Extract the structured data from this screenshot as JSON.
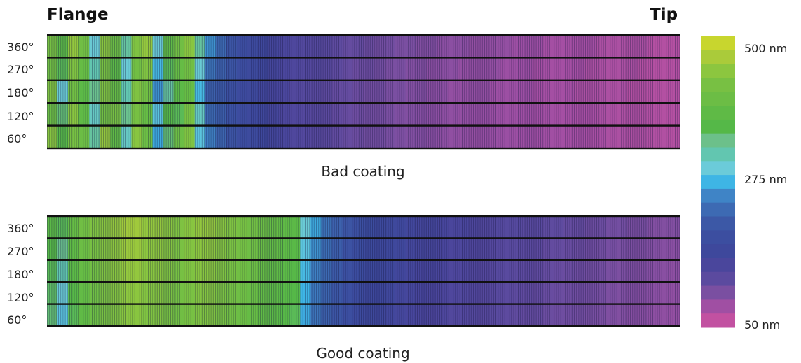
{
  "chart_data": [
    {
      "type": "heatmap",
      "left_label": "Flange",
      "right_label": "Tip",
      "caption": "Bad coating",
      "y_ticks": [
        "360°",
        "270°",
        "180°",
        "120°",
        "60°"
      ],
      "rows": 5,
      "columns": 60,
      "values_nm": [
        [
          430,
          380,
          460,
          420,
          300,
          450,
          410,
          330,
          440,
          460,
          300,
          390,
          420,
          450,
          330,
          260,
          230,
          200,
          180,
          170,
          160,
          150,
          140,
          135,
          130,
          125,
          120,
          115,
          110,
          110,
          105,
          100,
          100,
          95,
          95,
          90,
          90,
          85,
          85,
          85,
          80,
          80,
          80,
          80,
          75,
          75,
          75,
          70,
          70,
          70,
          70,
          70,
          65,
          65,
          65,
          65,
          65,
          60,
          60,
          60
        ],
        [
          420,
          360,
          440,
          400,
          320,
          430,
          380,
          300,
          420,
          440,
          280,
          360,
          400,
          420,
          300,
          240,
          220,
          200,
          180,
          170,
          160,
          150,
          140,
          135,
          130,
          125,
          120,
          115,
          110,
          105,
          105,
          100,
          95,
          95,
          90,
          90,
          85,
          85,
          85,
          80,
          80,
          80,
          80,
          75,
          75,
          75,
          70,
          70,
          70,
          70,
          70,
          65,
          65,
          65,
          65,
          65,
          60,
          60,
          60,
          60
        ],
        [
          440,
          300,
          420,
          380,
          340,
          440,
          400,
          320,
          440,
          420,
          260,
          330,
          380,
          400,
          280,
          220,
          210,
          190,
          175,
          165,
          155,
          145,
          140,
          130,
          125,
          120,
          115,
          110,
          110,
          105,
          100,
          100,
          95,
          95,
          90,
          90,
          85,
          85,
          80,
          80,
          80,
          80,
          75,
          75,
          75,
          75,
          70,
          70,
          70,
          70,
          65,
          65,
          65,
          65,
          65,
          60,
          60,
          60,
          60,
          60
        ],
        [
          410,
          350,
          450,
          390,
          310,
          420,
          430,
          340,
          430,
          400,
          290,
          370,
          360,
          430,
          310,
          230,
          215,
          195,
          178,
          168,
          158,
          148,
          138,
          132,
          127,
          122,
          117,
          112,
          108,
          104,
          100,
          98,
          95,
          92,
          90,
          88,
          85,
          83,
          82,
          80,
          78,
          78,
          76,
          75,
          74,
          73,
          72,
          71,
          70,
          69,
          68,
          67,
          66,
          65,
          64,
          63,
          62,
          61,
          60,
          60
        ],
        [
          450,
          370,
          430,
          410,
          330,
          460,
          390,
          310,
          450,
          410,
          270,
          350,
          410,
          440,
          290,
          250,
          225,
          198,
          182,
          172,
          162,
          152,
          142,
          134,
          128,
          123,
          118,
          113,
          109,
          105,
          101,
          99,
          96,
          93,
          91,
          89,
          86,
          84,
          82,
          81,
          79,
          78,
          77,
          76,
          75,
          74,
          73,
          72,
          71,
          70,
          69,
          68,
          67,
          66,
          65,
          64,
          63,
          62,
          61,
          60
        ]
      ]
    },
    {
      "type": "heatmap",
      "caption": "Good coating",
      "y_ticks": [
        "360°",
        "270°",
        "180°",
        "120°",
        "60°"
      ],
      "rows": 5,
      "columns": 60,
      "values_nm": [
        [
          380,
          360,
          400,
          420,
          440,
          450,
          460,
          470,
          470,
          460,
          460,
          450,
          440,
          450,
          460,
          460,
          450,
          440,
          430,
          420,
          410,
          400,
          390,
          380,
          300,
          270,
          240,
          220,
          200,
          190,
          180,
          170,
          165,
          160,
          155,
          150,
          150,
          145,
          140,
          140,
          135,
          130,
          130,
          125,
          125,
          120,
          120,
          115,
          115,
          110,
          110,
          105,
          105,
          100,
          100,
          95,
          95,
          90,
          90,
          90
        ],
        [
          370,
          340,
          390,
          410,
          430,
          445,
          455,
          465,
          465,
          455,
          455,
          445,
          435,
          445,
          455,
          455,
          445,
          435,
          425,
          415,
          405,
          395,
          385,
          375,
          290,
          260,
          235,
          215,
          195,
          185,
          175,
          168,
          162,
          158,
          152,
          148,
          146,
          142,
          138,
          136,
          132,
          128,
          126,
          122,
          120,
          118,
          116,
          112,
          110,
          108,
          106,
          103,
          101,
          98,
          96,
          94,
          92,
          90,
          88,
          86
        ],
        [
          360,
          320,
          380,
          400,
          420,
          440,
          450,
          460,
          460,
          450,
          450,
          440,
          430,
          440,
          450,
          450,
          440,
          430,
          420,
          410,
          400,
          390,
          380,
          370,
          280,
          250,
          230,
          210,
          190,
          180,
          170,
          165,
          160,
          155,
          150,
          145,
          143,
          140,
          135,
          133,
          130,
          126,
          124,
          120,
          118,
          116,
          114,
          110,
          108,
          106,
          104,
          101,
          99,
          96,
          94,
          92,
          90,
          88,
          86,
          84
        ],
        [
          355,
          300,
          370,
          395,
          415,
          435,
          445,
          455,
          455,
          445,
          445,
          435,
          425,
          435,
          445,
          445,
          435,
          425,
          415,
          405,
          395,
          385,
          375,
          365,
          275,
          245,
          225,
          205,
          188,
          178,
          168,
          162,
          158,
          152,
          148,
          143,
          140,
          138,
          133,
          131,
          128,
          124,
          122,
          118,
          116,
          114,
          112,
          108,
          106,
          104,
          102,
          99,
          97,
          94,
          92,
          90,
          88,
          86,
          84,
          82
        ],
        [
          350,
          290,
          360,
          390,
          410,
          430,
          440,
          450,
          450,
          440,
          440,
          430,
          420,
          430,
          440,
          440,
          430,
          420,
          410,
          400,
          390,
          380,
          370,
          360,
          270,
          240,
          220,
          200,
          185,
          175,
          165,
          160,
          155,
          150,
          145,
          140,
          138,
          135,
          130,
          128,
          125,
          122,
          120,
          116,
          114,
          112,
          110,
          106,
          104,
          102,
          100,
          97,
          95,
          92,
          90,
          88,
          86,
          84,
          82,
          80
        ]
      ]
    }
  ],
  "legend": {
    "labels": [
      "500 nm",
      "275 nm",
      "50 nm"
    ],
    "scale_min_nm": 50,
    "scale_max_nm": 500,
    "colors_top_to_bottom": [
      "#c8d62e",
      "#aacb3a",
      "#8cc63f",
      "#78c043",
      "#6cbd45",
      "#5fba46",
      "#55b848",
      "#6cc08a",
      "#62c6b0",
      "#6bcbd9",
      "#3eb5e5",
      "#3f84c6",
      "#3d6ab3",
      "#3c58a6",
      "#3c4ea0",
      "#3e489c",
      "#4a469c",
      "#5b4a9f",
      "#7a4fa1",
      "#a04fa3",
      "#c251a1"
    ]
  }
}
